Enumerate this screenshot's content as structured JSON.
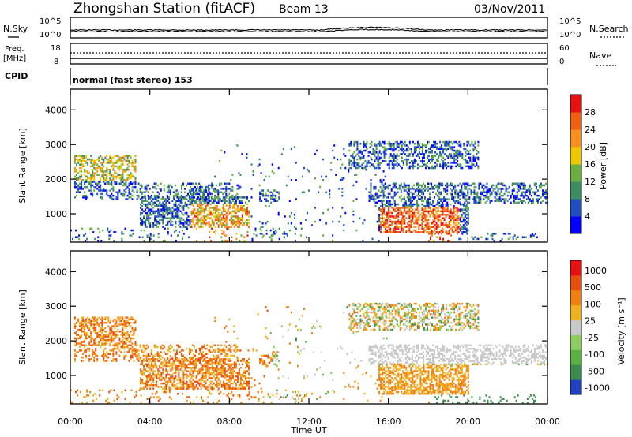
{
  "header": {
    "title": "Zhongshan Station (fitACF)",
    "beam": "Beam 13",
    "date": "03/Nov/2011"
  },
  "chart_data": [
    {
      "type": "line",
      "name": "noise-panel",
      "left_label": "N.Sky",
      "right_label": "N.Search",
      "left_ticks": [
        "10^5",
        "10^0"
      ],
      "right_ticks": [
        "10^5",
        "10^0"
      ],
      "xlim_hours": [
        0,
        24
      ]
    },
    {
      "type": "line",
      "name": "frequency-panel",
      "left_label_top": "Freq.",
      "left_label_bottom": "[MHz]",
      "right_label": "Nave",
      "left_ticks": [
        18,
        8
      ],
      "right_ticks": [
        60,
        0
      ],
      "cpid_label": "CPID",
      "cpid_text": "normal (fast stereo) 153",
      "xlim_hours": [
        0,
        24
      ]
    },
    {
      "type": "heatmap",
      "name": "power",
      "ylabel": "Slant Range [km]",
      "ylim_km": [
        180,
        4600
      ],
      "yticks": [
        1000,
        2000,
        3000,
        4000
      ],
      "colorbar_label": "Power [dB]",
      "colorbar_ticks": [
        4,
        8,
        12,
        16,
        20,
        24,
        28
      ],
      "colors": [
        "#0000ff",
        "#2050c0",
        "#3c8c64",
        "#6ab040",
        "#f0c800",
        "#f89020",
        "#f06010",
        "#e81010"
      ]
    },
    {
      "type": "heatmap",
      "name": "velocity",
      "ylabel": "Slant Range [km]",
      "ylim_km": [
        180,
        4600
      ],
      "yticks": [
        1000,
        2000,
        3000,
        4000
      ],
      "colorbar_label": "Velocity [m s⁻¹]",
      "colorbar_ticks": [
        "1000",
        "500",
        "100",
        "25",
        "-25",
        "-100",
        "-500",
        "-1000"
      ],
      "colors": [
        "#2040c0",
        "#3c8c50",
        "#5ab040",
        "#8ccc60",
        "#c8c8c8",
        "#f0b020",
        "#f08010",
        "#e85010",
        "#e81010"
      ]
    }
  ],
  "x_axis": {
    "label": "Time UT",
    "ticks": [
      "00:00",
      "04:00",
      "08:00",
      "12:00",
      "16:00",
      "20:00",
      "00:00"
    ]
  }
}
